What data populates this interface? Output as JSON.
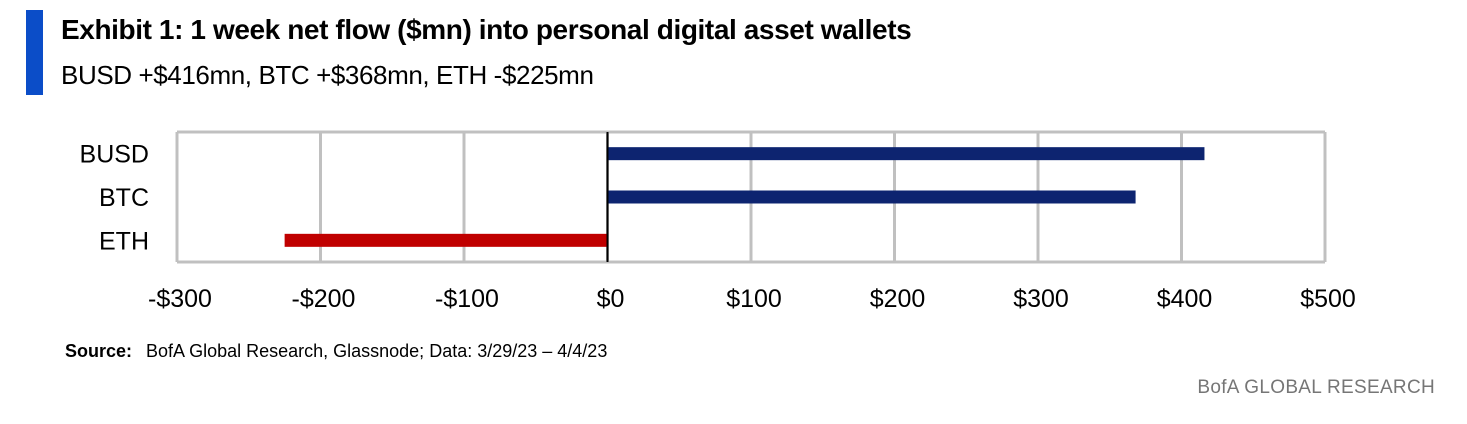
{
  "header": {
    "title": "Exhibit 1: 1 week net flow ($mn) into personal digital asset wallets",
    "subtitle": "BUSD +$416mn, BTC +$368mn, ETH -$225mn"
  },
  "footer": {
    "source_label": "Source:",
    "source_text": "BofA Global Research, Glassnode;  Data: 3/29/23 – 4/4/23",
    "brand": "BofA GLOBAL RESEARCH"
  },
  "colors": {
    "accent": "#0b4dc8",
    "positive": "#0d2470",
    "negative": "#c00000",
    "grid": "#c0c0c0"
  },
  "chart_data": {
    "type": "bar",
    "orientation": "horizontal",
    "categories": [
      "BUSD",
      "BTC",
      "ETH"
    ],
    "values": [
      416,
      368,
      -225
    ],
    "xlim": [
      -300,
      500
    ],
    "xticks": [
      -300,
      -200,
      -100,
      0,
      100,
      200,
      300,
      400,
      500
    ],
    "xtick_labels": [
      "-$300",
      "-$200",
      "-$100",
      "$0",
      "$100",
      "$200",
      "$300",
      "$400",
      "$500"
    ],
    "grid": true,
    "legend": "none"
  }
}
